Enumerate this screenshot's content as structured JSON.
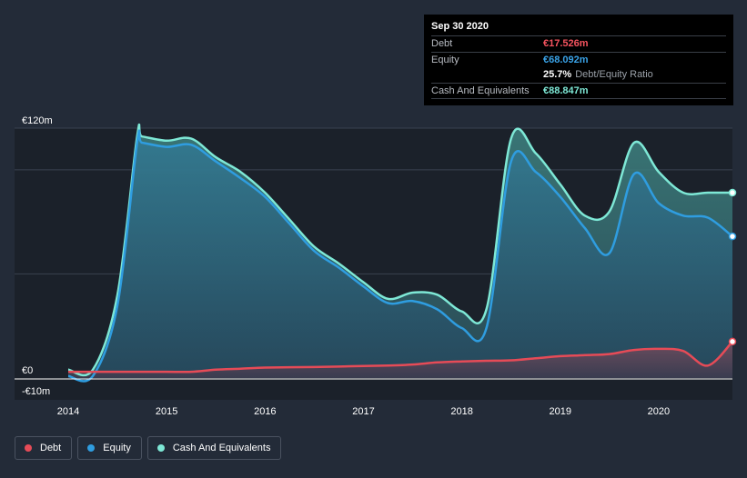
{
  "chart_data": {
    "type": "area",
    "ylim": [
      -10,
      120
    ],
    "x_ticks": [
      {
        "label": "2014",
        "x": 2014.0
      },
      {
        "label": "2015",
        "x": 2015.0
      },
      {
        "label": "2016",
        "x": 2016.0
      },
      {
        "label": "2017",
        "x": 2017.0
      },
      {
        "label": "2018",
        "x": 2018.0
      },
      {
        "label": "2019",
        "x": 2019.0
      },
      {
        "label": "2020",
        "x": 2020.0
      }
    ],
    "xlim": [
      2013.75,
      2020.75
    ],
    "y_ticks": [
      {
        "label": "€120m",
        "value": 120
      },
      {
        "label": "€0",
        "value": 0
      },
      {
        "label": "-€10m",
        "value": -10
      }
    ],
    "gridlines": [
      120,
      100,
      50
    ],
    "series": [
      {
        "name": "Cash And Equivalents",
        "color": "#7ee8d6",
        "x": [
          2014.0,
          2014.25,
          2014.5,
          2014.7,
          2014.75,
          2015.0,
          2015.25,
          2015.5,
          2015.75,
          2016.0,
          2016.25,
          2016.5,
          2016.75,
          2017.0,
          2017.25,
          2017.5,
          2017.75,
          2018.0,
          2018.25,
          2018.5,
          2018.75,
          2019.0,
          2019.25,
          2019.5,
          2019.75,
          2020.0,
          2020.25,
          2020.5,
          2020.75
        ],
        "values": [
          4,
          4,
          40,
          116,
          116,
          114,
          115,
          106,
          99,
          89,
          76,
          63,
          55,
          46,
          38,
          41,
          40,
          32,
          33,
          115,
          108,
          93,
          78,
          80,
          113,
          99,
          89,
          89,
          89
        ]
      },
      {
        "name": "Equity",
        "color": "#2f9de0",
        "x": [
          2014.0,
          2014.25,
          2014.5,
          2014.7,
          2014.75,
          2015.0,
          2015.25,
          2015.5,
          2015.75,
          2016.0,
          2016.25,
          2016.5,
          2016.75,
          2017.0,
          2017.25,
          2017.5,
          2017.75,
          2018.0,
          2018.25,
          2018.5,
          2018.75,
          2019.0,
          2019.25,
          2019.5,
          2019.75,
          2020.0,
          2020.25,
          2020.5,
          2020.75
        ],
        "values": [
          1,
          1,
          35,
          113,
          113,
          111,
          112,
          104,
          96,
          87,
          74,
          61,
          53,
          44,
          36,
          37,
          33,
          24,
          24,
          104,
          99,
          87,
          72,
          60,
          98,
          84,
          78,
          77,
          68
        ]
      },
      {
        "name": "Debt",
        "color": "#e64b57",
        "x": [
          2014.0,
          2014.25,
          2014.5,
          2014.7,
          2014.75,
          2015.0,
          2015.25,
          2015.5,
          2015.75,
          2016.0,
          2016.25,
          2016.5,
          2016.75,
          2017.0,
          2017.25,
          2017.5,
          2017.75,
          2018.0,
          2018.25,
          2018.5,
          2018.75,
          2019.0,
          2019.25,
          2019.5,
          2019.75,
          2020.0,
          2020.25,
          2020.5,
          2020.75
        ],
        "values": [
          3,
          3,
          3,
          3,
          3,
          3,
          3,
          4,
          4.5,
          5,
          5.2,
          5.3,
          5.5,
          5.8,
          6,
          6.5,
          7.5,
          8,
          8.3,
          8.5,
          9.5,
          10.5,
          11,
          11.5,
          13.5,
          14,
          13,
          6,
          17.5
        ]
      }
    ]
  },
  "tooltip": {
    "date": "Sep 30 2020",
    "debt_label": "Debt",
    "debt_value": "€17.526m",
    "equity_label": "Equity",
    "equity_value": "€68.092m",
    "ratio_value": "25.7%",
    "ratio_label": "Debt/Equity Ratio",
    "cash_label": "Cash And Equivalents",
    "cash_value": "€88.847m",
    "colors": {
      "debt": "#f5535f",
      "equity": "#3aa3e8",
      "cash": "#7ee8d6"
    }
  },
  "legend": [
    {
      "label": "Debt",
      "color": "#e64b57"
    },
    {
      "label": "Equity",
      "color": "#2f9de0"
    },
    {
      "label": "Cash And Equivalents",
      "color": "#7ee8d6"
    }
  ]
}
